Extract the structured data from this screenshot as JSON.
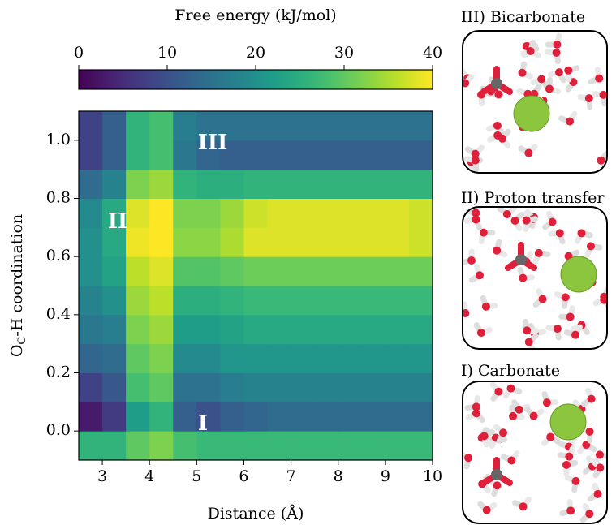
{
  "chart_data": {
    "type": "heatmap",
    "colormap": "viridis",
    "colorbar": {
      "label": "Free energy (kJ/mol)",
      "clim": [
        0,
        40
      ],
      "ticks": [
        0,
        10,
        20,
        30,
        40
      ]
    },
    "xlabel": "Distance (Å)",
    "ylabel": {
      "main": "O",
      "sub": "C",
      "rest": "-H coordination"
    },
    "xlim": [
      2.5,
      10
    ],
    "ylim": [
      -0.1,
      1.1
    ],
    "xticks": [
      3,
      4,
      5,
      6,
      7,
      8,
      9,
      10
    ],
    "yticks": [
      {
        "value": 0,
        "label": "0.0"
      },
      0.2,
      0.4,
      0.6,
      0.8,
      {
        "value": 1,
        "label": "1.0"
      }
    ],
    "x_bins": [
      2.5,
      3,
      3.5,
      4,
      4.5,
      5,
      5.5,
      6,
      6.5,
      7,
      7.5,
      8,
      8.5,
      9,
      9.5,
      10
    ],
    "y_bins": [
      -0.1,
      0,
      0.1,
      0.2,
      0.3,
      0.4,
      0.5,
      0.6,
      0.7,
      0.8,
      0.9,
      1.0,
      1.1
    ],
    "z": [
      [
        26,
        26,
        30,
        32,
        28,
        27,
        27,
        27,
        27,
        27,
        27,
        27,
        27,
        27,
        27
      ],
      [
        3,
        7,
        22,
        26,
        12,
        10,
        12,
        13,
        14,
        14,
        14,
        14,
        14,
        14,
        14
      ],
      [
        8,
        11,
        28,
        30,
        15,
        15,
        17,
        18,
        18,
        18,
        18,
        18,
        18,
        18,
        18
      ],
      [
        13,
        14,
        30,
        32,
        19,
        19,
        21,
        21,
        21,
        21,
        21,
        21,
        21,
        21,
        21
      ],
      [
        16,
        17,
        32,
        34,
        22,
        22,
        23,
        24,
        24,
        24,
        24,
        24,
        24,
        24,
        24
      ],
      [
        18,
        20,
        34,
        36,
        25,
        25,
        26,
        27,
        27,
        27,
        27,
        27,
        27,
        27,
        27
      ],
      [
        20,
        23,
        36,
        38,
        29,
        29,
        30,
        31,
        31,
        31,
        31,
        31,
        31,
        31,
        31
      ],
      [
        20,
        24,
        39,
        40,
        33,
        33,
        35,
        38,
        38,
        38,
        38,
        38,
        38,
        38,
        37
      ],
      [
        19,
        24,
        38,
        40,
        32,
        32,
        34,
        37,
        38,
        38,
        38,
        38,
        38,
        38,
        37
      ],
      [
        14,
        18,
        32,
        34,
        26,
        25,
        25,
        26,
        26,
        26,
        26,
        26,
        26,
        26,
        26
      ],
      [
        8,
        12,
        26,
        28,
        16,
        13,
        12,
        12,
        12,
        12,
        12,
        12,
        12,
        12,
        12
      ],
      [
        8,
        12,
        26,
        28,
        17,
        15,
        15,
        15,
        15,
        15,
        15,
        15,
        15,
        15,
        15
      ]
    ],
    "annotations": [
      "III",
      "II",
      "I"
    ],
    "panels": [
      "III) Bicarbonate",
      "II) Proton transfer",
      "I) Carbonate"
    ]
  }
}
